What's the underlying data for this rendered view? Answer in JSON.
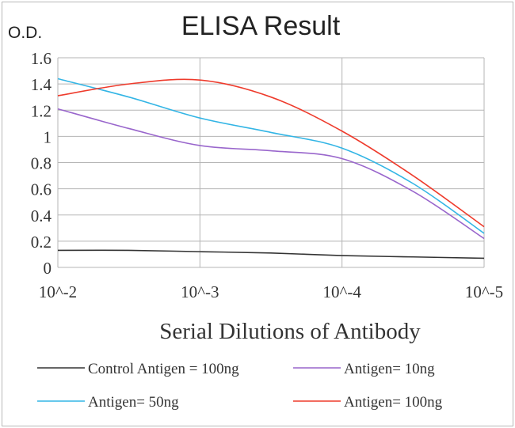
{
  "chart_data": {
    "type": "line",
    "title": "ELISA Result",
    "ylabel": "O.D.",
    "xlabel": "Serial Dilutions  of Antibody",
    "categories": [
      "10^-2",
      "10^-3",
      "10^-4",
      "10^-5"
    ],
    "x": [
      0,
      0.5,
      1,
      1.5,
      2,
      2.5,
      3
    ],
    "ylim": [
      0,
      1.6
    ],
    "yticks": [
      "0",
      "0.2",
      "0.4",
      "0.6",
      "0.8",
      "1",
      "1.2",
      "1.4",
      "1.6"
    ],
    "grid": true,
    "legend_position": "bottom",
    "series": [
      {
        "name": "Control Antigen = 100ng",
        "color": "#333333",
        "values": [
          0.13,
          0.13,
          0.12,
          0.11,
          0.09,
          0.08,
          0.07
        ]
      },
      {
        "name": "Antigen= 10ng",
        "color": "#9966cc",
        "values": [
          1.21,
          1.06,
          0.93,
          0.89,
          0.83,
          0.58,
          0.22
        ]
      },
      {
        "name": "Antigen= 50ng",
        "color": "#33b5e5",
        "values": [
          1.44,
          1.3,
          1.14,
          1.03,
          0.91,
          0.64,
          0.26
        ]
      },
      {
        "name": "Antigen= 100ng",
        "color": "#ee3b2c",
        "values": [
          1.31,
          1.4,
          1.43,
          1.3,
          1.04,
          0.7,
          0.31
        ]
      }
    ]
  }
}
